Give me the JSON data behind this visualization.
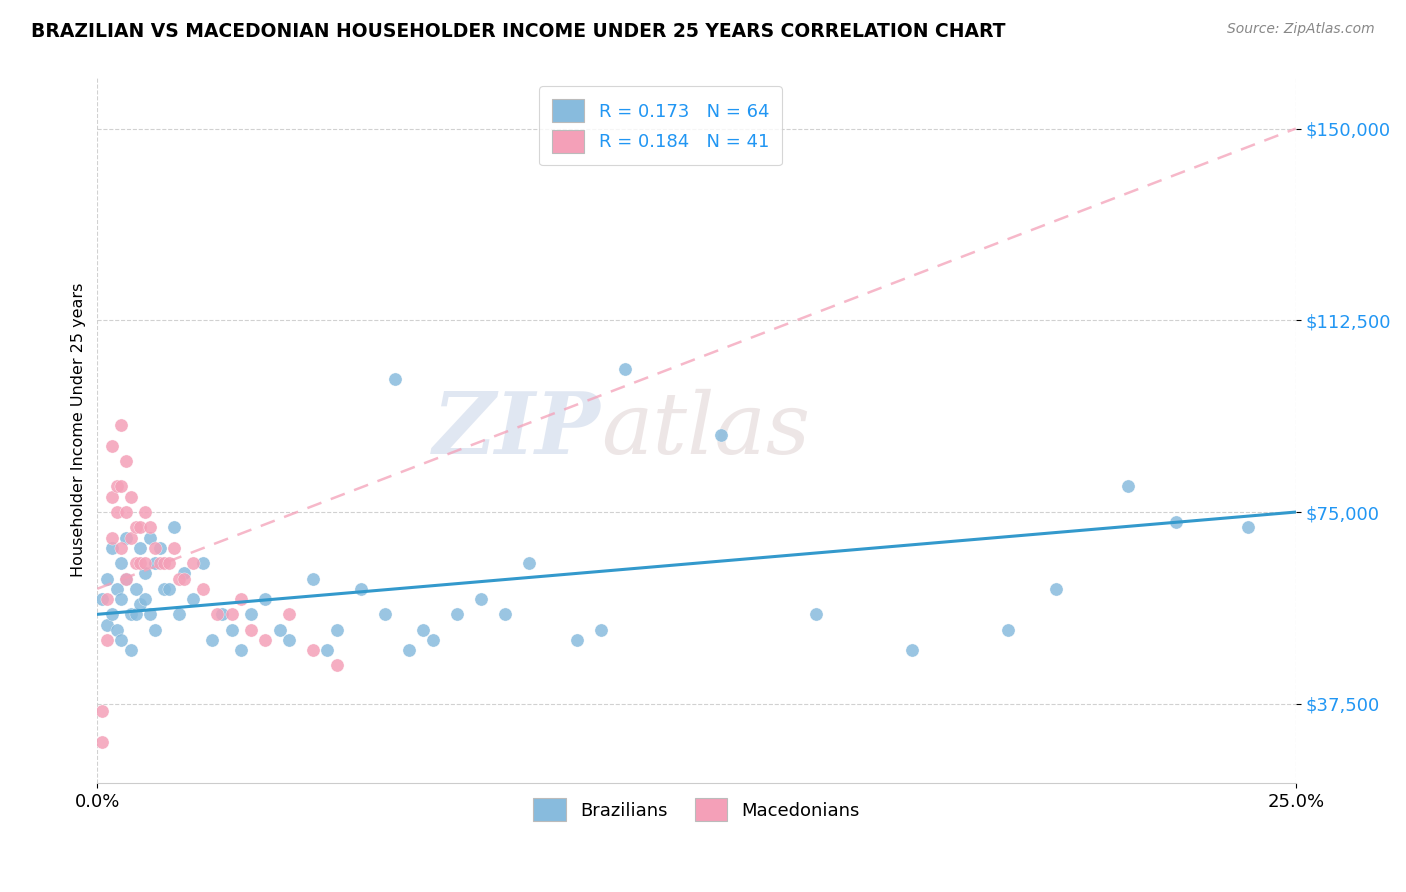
{
  "title": "BRAZILIAN VS MACEDONIAN HOUSEHOLDER INCOME UNDER 25 YEARS CORRELATION CHART",
  "source": "Source: ZipAtlas.com",
  "ylabel": "Householder Income Under 25 years",
  "ytick_labels": [
    "$37,500",
    "$75,000",
    "$112,500",
    "$150,000"
  ],
  "ytick_values": [
    37500,
    75000,
    112500,
    150000
  ],
  "xmin": 0.0,
  "xmax": 0.25,
  "ymin": 22000,
  "ymax": 160000,
  "watermark_zip": "ZIP",
  "watermark_atlas": "atlas",
  "legend_r1": "R = 0.173   N = 64",
  "legend_r2": "R = 0.184   N = 41",
  "color_brazilian": "#88bbdd",
  "color_macedonian": "#f4a0b8",
  "color_trendline_braz": "#3399cc",
  "color_trendline_mac": "#f4a0b8",
  "braz_trendline_x": [
    0.0,
    0.25
  ],
  "braz_trendline_y": [
    55000,
    75000
  ],
  "mac_trendline_x": [
    0.0,
    0.25
  ],
  "mac_trendline_y": [
    60000,
    150000
  ],
  "brazilian_x": [
    0.001,
    0.002,
    0.002,
    0.003,
    0.003,
    0.004,
    0.004,
    0.005,
    0.005,
    0.005,
    0.006,
    0.006,
    0.007,
    0.007,
    0.008,
    0.008,
    0.009,
    0.009,
    0.01,
    0.01,
    0.011,
    0.011,
    0.012,
    0.012,
    0.013,
    0.014,
    0.015,
    0.016,
    0.017,
    0.018,
    0.02,
    0.022,
    0.024,
    0.026,
    0.028,
    0.03,
    0.032,
    0.035,
    0.038,
    0.04,
    0.045,
    0.048,
    0.05,
    0.055,
    0.06,
    0.062,
    0.065,
    0.068,
    0.07,
    0.075,
    0.08,
    0.085,
    0.09,
    0.1,
    0.105,
    0.11,
    0.13,
    0.15,
    0.17,
    0.19,
    0.2,
    0.215,
    0.225,
    0.24
  ],
  "brazilian_y": [
    58000,
    62000,
    53000,
    55000,
    68000,
    60000,
    52000,
    65000,
    58000,
    50000,
    62000,
    70000,
    55000,
    48000,
    60000,
    55000,
    68000,
    57000,
    58000,
    63000,
    55000,
    70000,
    52000,
    65000,
    68000,
    60000,
    60000,
    72000,
    55000,
    63000,
    58000,
    65000,
    50000,
    55000,
    52000,
    48000,
    55000,
    58000,
    52000,
    50000,
    62000,
    48000,
    52000,
    60000,
    55000,
    101000,
    48000,
    52000,
    50000,
    55000,
    58000,
    55000,
    65000,
    50000,
    52000,
    103000,
    90000,
    55000,
    48000,
    52000,
    60000,
    80000,
    73000,
    72000
  ],
  "macedonian_x": [
    0.001,
    0.001,
    0.002,
    0.002,
    0.003,
    0.003,
    0.003,
    0.004,
    0.004,
    0.005,
    0.005,
    0.005,
    0.006,
    0.006,
    0.006,
    0.007,
    0.007,
    0.008,
    0.008,
    0.009,
    0.009,
    0.01,
    0.01,
    0.011,
    0.012,
    0.013,
    0.014,
    0.015,
    0.016,
    0.017,
    0.018,
    0.02,
    0.022,
    0.025,
    0.028,
    0.03,
    0.032,
    0.035,
    0.04,
    0.045,
    0.05
  ],
  "macedonian_y": [
    36000,
    30000,
    58000,
    50000,
    78000,
    70000,
    88000,
    80000,
    75000,
    68000,
    80000,
    92000,
    62000,
    75000,
    85000,
    70000,
    78000,
    65000,
    72000,
    65000,
    72000,
    65000,
    75000,
    72000,
    68000,
    65000,
    65000,
    65000,
    68000,
    62000,
    62000,
    65000,
    60000,
    55000,
    55000,
    58000,
    52000,
    50000,
    55000,
    48000,
    45000
  ]
}
